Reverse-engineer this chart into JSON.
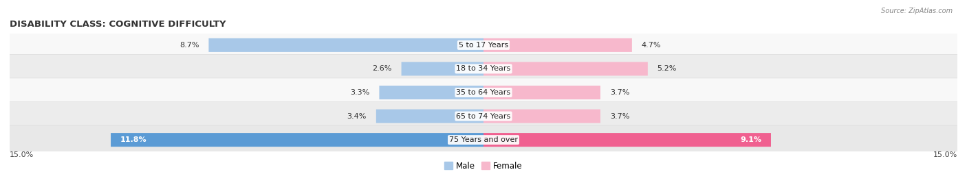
{
  "title": "DISABILITY CLASS: COGNITIVE DIFFICULTY",
  "source": "Source: ZipAtlas.com",
  "categories": [
    "5 to 17 Years",
    "18 to 34 Years",
    "35 to 64 Years",
    "65 to 74 Years",
    "75 Years and over"
  ],
  "male_values": [
    8.7,
    2.6,
    3.3,
    3.4,
    11.8
  ],
  "female_values": [
    4.7,
    5.2,
    3.7,
    3.7,
    9.1
  ],
  "max_value": 15.0,
  "male_color_light": "#a8c8e8",
  "male_color_dark": "#5b9bd5",
  "female_color_light": "#f7b8cc",
  "female_color_dark": "#f06090",
  "row_colors": [
    "#f7f7f7",
    "#eeeeee",
    "#f7f7f7",
    "#eeeeee",
    "#e8e8e8"
  ],
  "title_fontsize": 9.5,
  "label_fontsize": 8,
  "tick_fontsize": 8,
  "legend_fontsize": 8.5,
  "inside_label_threshold": 6.0
}
